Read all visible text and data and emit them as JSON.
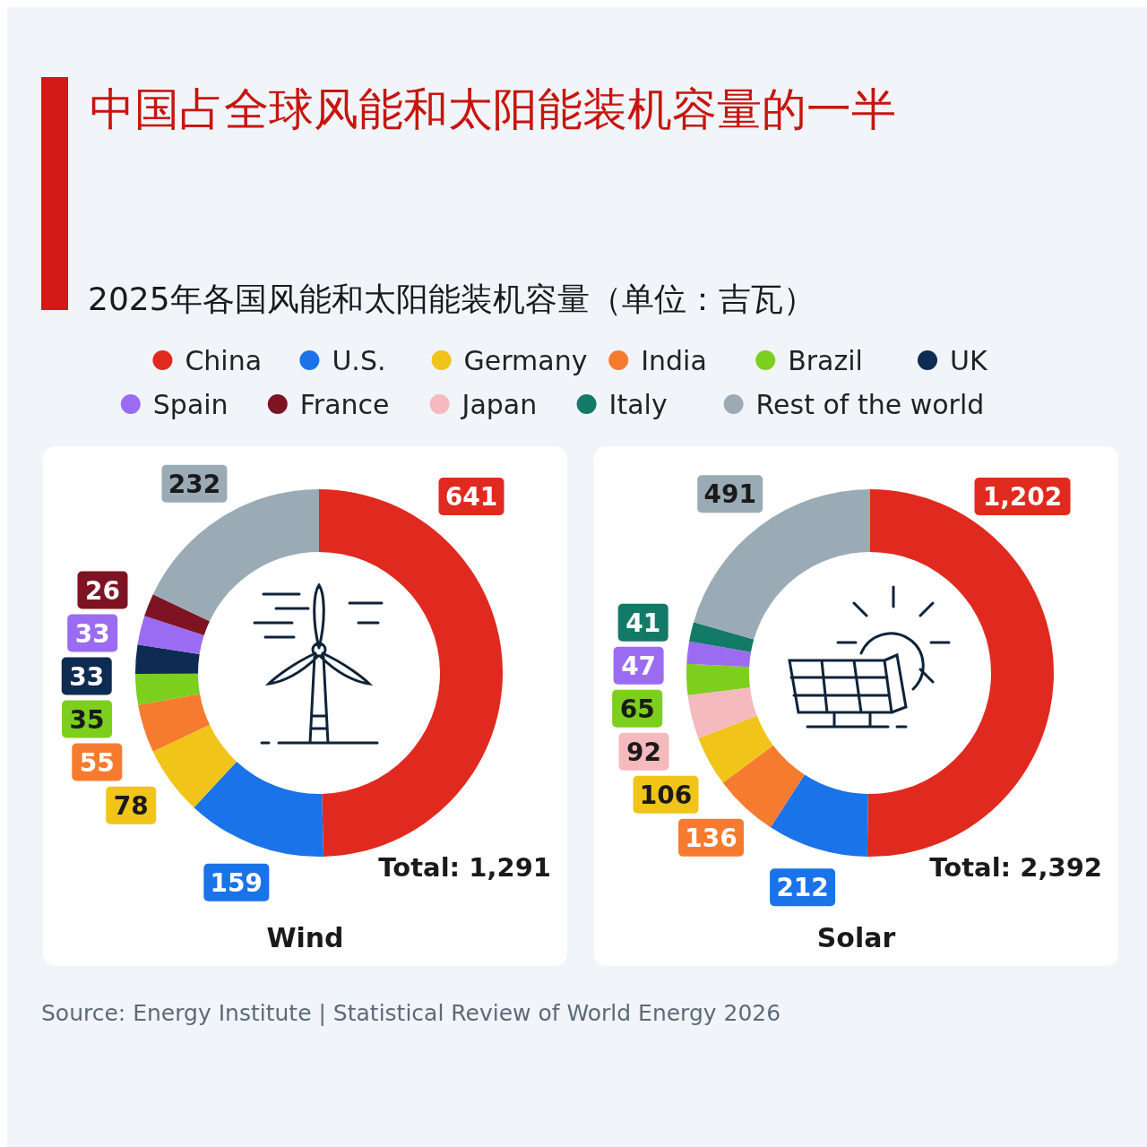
{
  "chart_data": [
    {
      "type": "donut",
      "title": "中国占全球风能和太阳能装机容量的一半",
      "subtitle": "2025年各国风能和太阳能装机容量（单位：吉瓦）",
      "xlabel": "Wind",
      "legend": "top",
      "categories": [
        "China",
        "U.S.",
        "Germany",
        "India",
        "Brazil",
        "UK",
        "Spain",
        "France",
        "Japan",
        "Italy",
        "Rest of the world"
      ],
      "values": [
        641,
        159,
        78,
        55,
        35,
        33,
        33,
        26,
        null,
        null,
        232
      ],
      "value_labels": [
        "641",
        "159",
        "78",
        "55",
        "35",
        "33",
        "33",
        "26",
        null,
        null,
        "232"
      ],
      "colors": [
        "#e02a1f",
        "#1a73e8",
        "#f0c419",
        "#f77b2f",
        "#7ccf1c",
        "#0e2b52",
        "#9b6cf2",
        "#7d1323",
        "#f4babd",
        "#137a67",
        "#9aabb5"
      ],
      "annotations": [
        "Total: 1,291"
      ]
    },
    {
      "type": "donut",
      "xlabel": "Solar",
      "categories": [
        null,
        null,
        null,
        null,
        null,
        null,
        null,
        null,
        null
      ],
      "values": [
        1202,
        212,
        136,
        106,
        92,
        65,
        47,
        41,
        491
      ],
      "value_labels": [
        "1,202",
        "212",
        "136",
        "106",
        "92",
        "65",
        "47",
        "41",
        "491"
      ],
      "colors": [
        "#e02a1f",
        "#1a73e8",
        "#f77b2f",
        "#f0c419",
        "#f4babd",
        "#7ccf1c",
        "#9b6cf2",
        "#137a67",
        "#9aabb5"
      ],
      "annotations": [
        "Total: 2,392",
        "Source: Energy Institute | Statistical Review of World Energy 2026"
      ]
    }
  ]
}
